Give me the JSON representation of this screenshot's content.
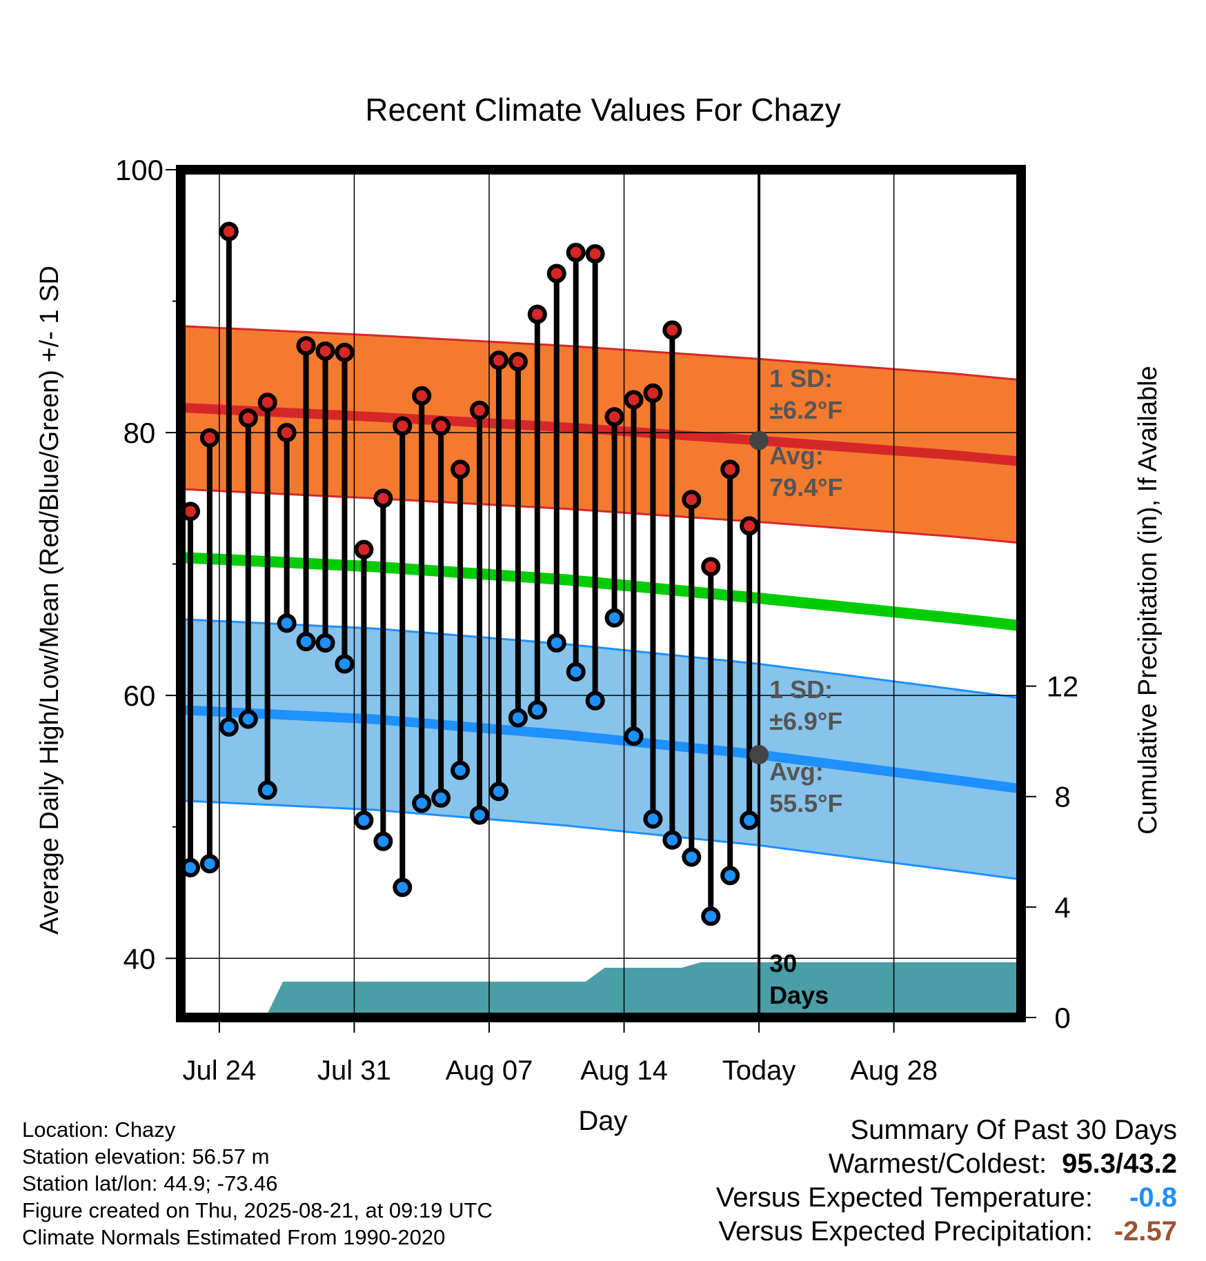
{
  "chart_data": {
    "type": "line",
    "title": "Recent Climate Values For Chazy",
    "xlabel": "Day",
    "ylabel": "Average Daily High/Low/Mean (Red/Blue/Green) +/- 1 SD",
    "ylabel_right": "Cumulative Precipitation (in), If Available",
    "ylim": [
      35.5,
      100
    ],
    "yticks": [
      40,
      60,
      80,
      100
    ],
    "y_minor_ticks": [
      50,
      70,
      90
    ],
    "y2lim": [
      0,
      30.7
    ],
    "y2ticks": [
      0,
      4,
      8,
      12
    ],
    "x_days_offset_range": [
      -30,
      13.6
    ],
    "xticks": [
      {
        "label": "Jul 24",
        "day": -28
      },
      {
        "label": "Jul 31",
        "day": -21
      },
      {
        "label": "Aug 07",
        "day": -14
      },
      {
        "label": "Aug 14",
        "day": -7
      },
      {
        "label": "Today",
        "day": 0
      },
      {
        "label": "Aug 28",
        "day": 7
      }
    ],
    "grid": true,
    "daily_high": [
      74.0,
      79.6,
      95.3,
      81.1,
      82.3,
      80.0,
      86.6,
      86.2,
      86.1,
      71.1,
      75.0,
      80.5,
      82.8,
      80.5,
      77.2,
      81.7,
      85.5,
      85.4,
      89.0,
      92.1,
      93.7,
      93.6,
      81.2,
      82.5,
      83.0,
      87.8,
      74.9,
      69.8,
      77.2,
      72.9
    ],
    "daily_low": [
      46.9,
      47.2,
      57.6,
      58.2,
      52.8,
      65.5,
      64.1,
      64.0,
      62.4,
      50.5,
      48.9,
      45.4,
      51.8,
      52.2,
      54.3,
      50.9,
      52.7,
      58.3,
      58.9,
      64.0,
      61.8,
      59.6,
      65.9,
      56.9,
      50.6,
      49.0,
      47.7,
      43.2,
      46.3,
      50.5
    ],
    "normal_high": {
      "days": [
        -30,
        -20,
        -10,
        0,
        10,
        13.6
      ],
      "values": [
        81.9,
        81.2,
        80.4,
        79.4,
        78.3,
        77.8
      ]
    },
    "normal_high_sd": 6.2,
    "normal_low": {
      "days": [
        -30,
        -20,
        -10,
        0,
        10,
        13.6
      ],
      "values": [
        58.9,
        58.2,
        57.0,
        55.5,
        53.6,
        52.9
      ]
    },
    "normal_low_sd": 6.9,
    "normal_mean": {
      "days": [
        -30,
        -20,
        -10,
        0,
        10,
        13.6
      ],
      "values": [
        70.5,
        69.8,
        68.8,
        67.4,
        65.9,
        65.3
      ]
    },
    "cumulative_precip": {
      "days": [
        -30,
        -25.6,
        -24.7,
        -9,
        -8,
        -4,
        -3,
        13.6
      ],
      "values": [
        0,
        0,
        1.3,
        1.3,
        1.8,
        1.8,
        2.0,
        2.0
      ]
    },
    "colors": {
      "high_line": "#d62728",
      "high_band": "#f47a30",
      "low_line": "#1e90ff",
      "low_band": "#87c3ea",
      "mean_line": "#00cc00",
      "precip_fill": "#4a9ea6",
      "high_marker": "#d62728",
      "low_marker": "#1e90ff",
      "today_marker": "#444444",
      "annotation_text": "#555555"
    },
    "annotations": {
      "high_sd": [
        "1 SD:",
        "±6.2°F"
      ],
      "high_avg": [
        "Avg:",
        "79.4°F"
      ],
      "low_sd": [
        "1 SD:",
        "±6.9°F"
      ],
      "low_avg": [
        "Avg:",
        "55.5°F"
      ],
      "window": [
        "30",
        "Days"
      ]
    }
  },
  "info": {
    "location": "Location: Chazy",
    "elevation": "Station elevation: 56.57 m",
    "latlon": "Station lat/lon: 44.9; -73.46",
    "created": "Figure created on Thu, 2025-08-21, at 09:19 UTC",
    "normals": "Climate Normals Estimated From 1990-2020"
  },
  "summary": {
    "title": "Summary Of Past 30 Days",
    "warm_cold_label": "Warmest/Coldest:",
    "warm_cold_value": "95.3/43.2",
    "temp_label": "Versus Expected Temperature:",
    "temp_value": "-0.8",
    "precip_label": "Versus Expected Precipitation:",
    "precip_value": "-2.57"
  }
}
